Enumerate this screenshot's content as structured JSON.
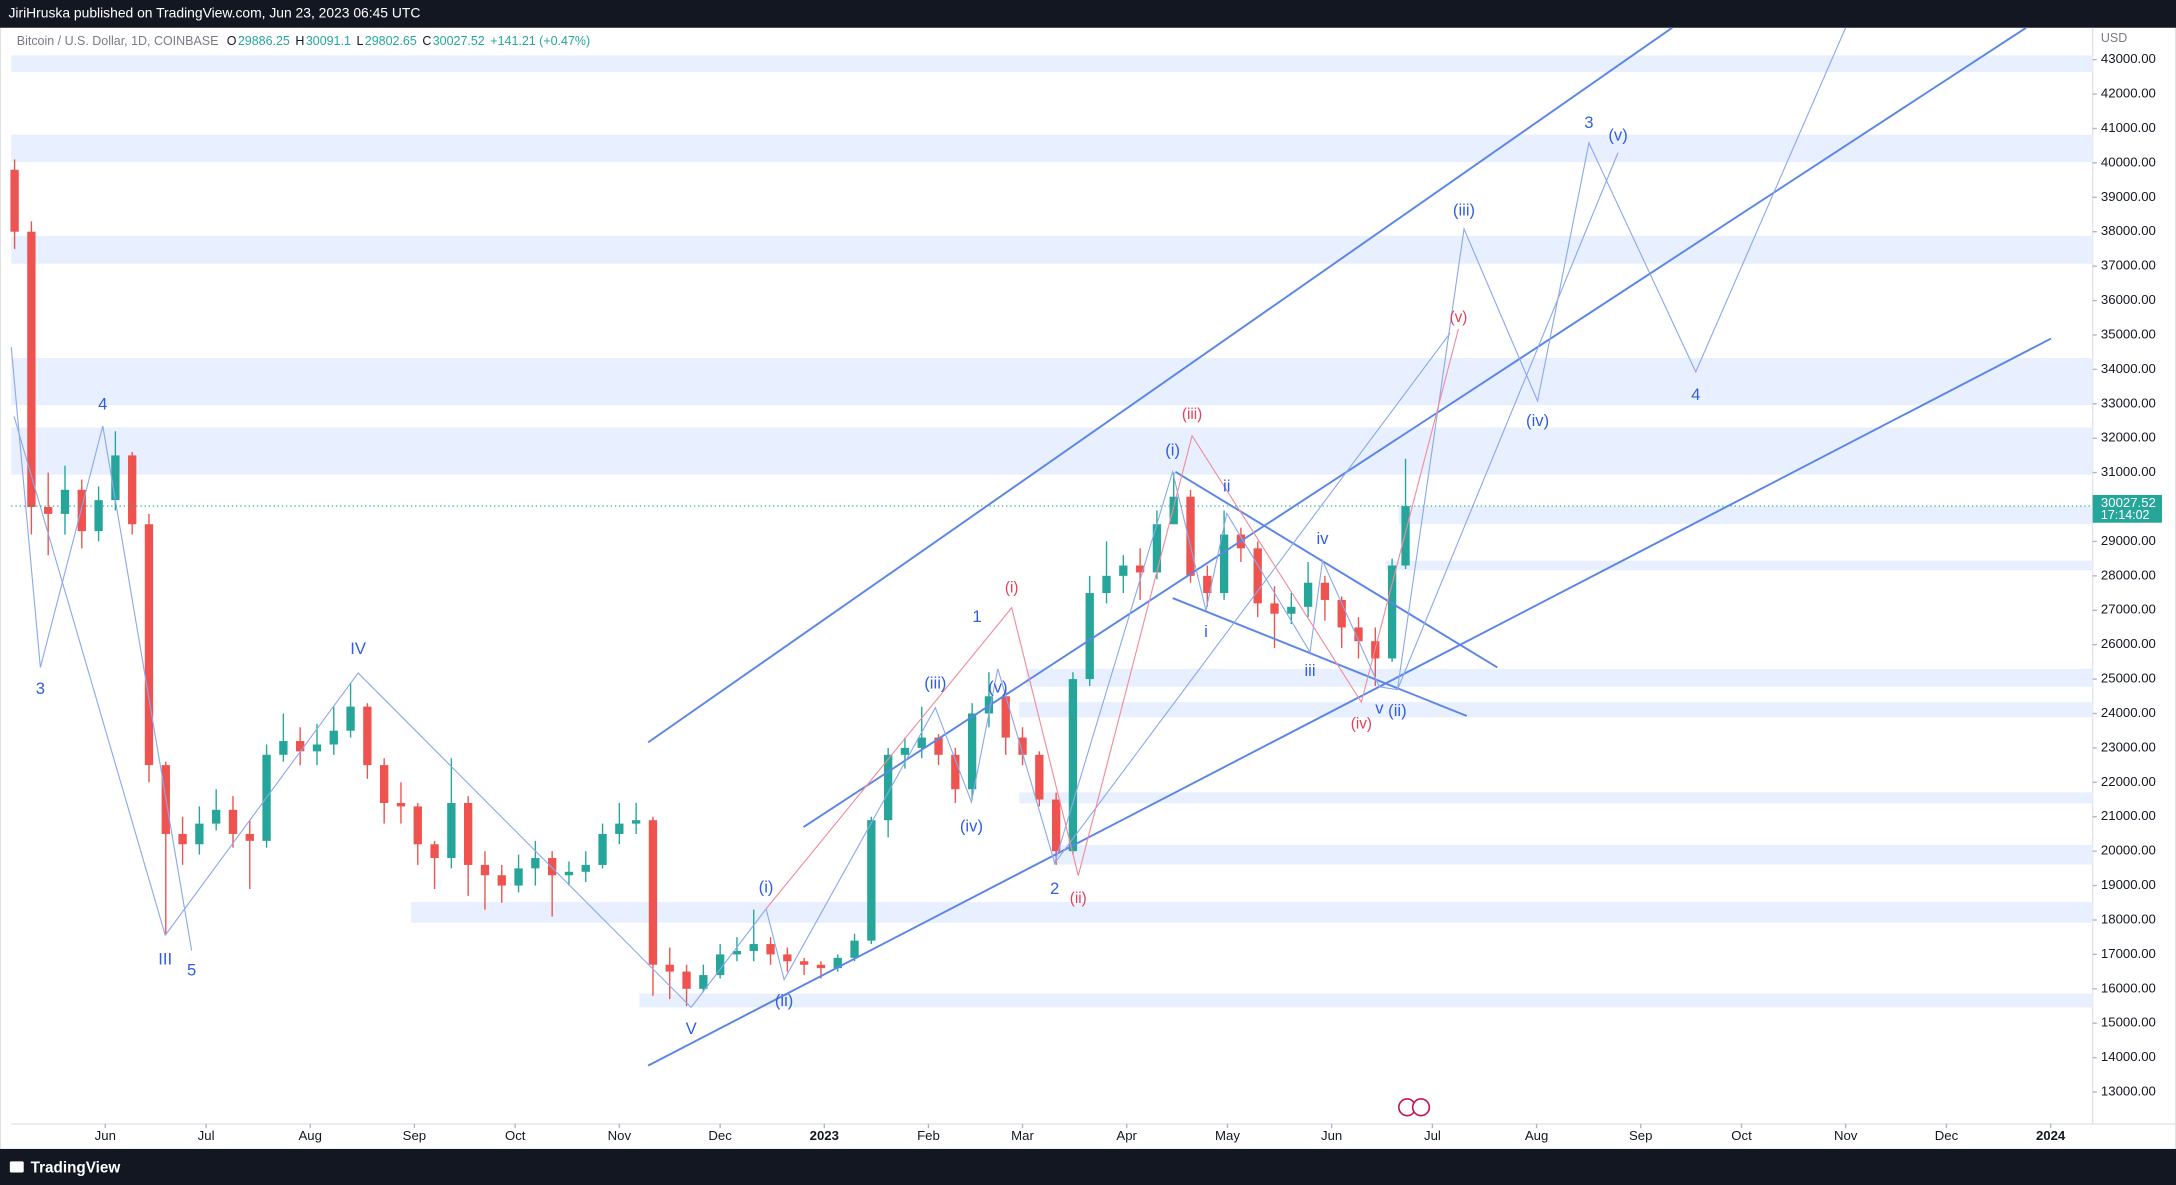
{
  "header": {
    "publisher": "JiriHruska published on TradingView.com, Jun 23, 2023 06:45 UTC"
  },
  "footer": {
    "brand": "TradingView"
  },
  "chart_data": {
    "type": "candlestick",
    "title": "Bitcoin / U.S. Dollar, 1D, COINBASE",
    "legend_ohlc": [
      {
        "label": "O",
        "value": 29886.25
      },
      {
        "label": "H",
        "value": 30091.1
      },
      {
        "label": "L",
        "value": 29802.65
      },
      {
        "label": "C",
        "value": 30027.52
      }
    ],
    "change": "+141.21 (+0.47%)",
    "y_unit": "USD",
    "countdown": "17:14:02",
    "up_color": "#26a69a",
    "down_color": "#ef5350",
    "zone_color": "#e8efff",
    "x": [
      1,
      6,
      11,
      16,
      21,
      26,
      31,
      36,
      41,
      46,
      51,
      56,
      61,
      66,
      71,
      76,
      81,
      86,
      91,
      96,
      101,
      106,
      111,
      116,
      121,
      126,
      131,
      136,
      141,
      146,
      151,
      156,
      161,
      166,
      171,
      176,
      181,
      186,
      191,
      196,
      201,
      206,
      211,
      216,
      221,
      226,
      231,
      236,
      241,
      246,
      251,
      256,
      261,
      266,
      271,
      276,
      281,
      286,
      291,
      296,
      301,
      306,
      311,
      316,
      321,
      326,
      331,
      336,
      341,
      346,
      351,
      356,
      361,
      366,
      371,
      376,
      381,
      386,
      391,
      396,
      401,
      406,
      411,
      415
    ],
    "open": [
      39800,
      38000,
      30000,
      29800,
      30500,
      29300,
      30200,
      31500,
      29500,
      22500,
      20500,
      20200,
      20800,
      21200,
      20500,
      20300,
      22800,
      23200,
      22900,
      23100,
      23500,
      24200,
      22500,
      21400,
      21300,
      20200,
      19800,
      21400,
      19600,
      19300,
      19000,
      19500,
      19800,
      19300,
      19400,
      19600,
      20500,
      20800,
      20900,
      16700,
      16500,
      16000,
      16400,
      17000,
      17100,
      17300,
      17000,
      16800,
      16700,
      16600,
      16900,
      17400,
      20900,
      22800,
      23000,
      23300,
      22800,
      21800,
      24000,
      24500,
      23300,
      22800,
      21500,
      20000,
      25000,
      27500,
      28000,
      28300,
      28100,
      29500,
      30300,
      28000,
      27500,
      29200,
      28800,
      27200,
      26900,
      27100,
      27800,
      27300,
      26500,
      26100,
      25600,
      28300
    ],
    "high": [
      40100,
      38300,
      31000,
      31200,
      30800,
      30600,
      32200,
      31600,
      29800,
      22600,
      21000,
      21300,
      21800,
      21600,
      20900,
      23100,
      24000,
      23600,
      23700,
      24200,
      24900,
      24300,
      22700,
      22000,
      21400,
      20300,
      22700,
      21600,
      20000,
      19600,
      19900,
      20300,
      20000,
      19700,
      20000,
      20800,
      21400,
      21400,
      21000,
      17200,
      16700,
      16700,
      17300,
      17500,
      18300,
      17500,
      17200,
      16900,
      16800,
      17000,
      17600,
      21000,
      23000,
      23300,
      24200,
      23400,
      23000,
      24300,
      25200,
      24700,
      23600,
      22900,
      21700,
      25200,
      28000,
      29000,
      28600,
      28800,
      29900,
      31000,
      30500,
      28300,
      29900,
      29400,
      29000,
      27700,
      27500,
      28400,
      28000,
      27400,
      26800,
      26500,
      28500,
      31400
    ],
    "low": [
      37500,
      29200,
      28600,
      29200,
      28800,
      29000,
      29900,
      29200,
      22000,
      17600,
      19600,
      19900,
      20600,
      20100,
      18900,
      20100,
      22600,
      22500,
      22500,
      22800,
      23300,
      22100,
      20800,
      20800,
      19600,
      18900,
      19500,
      18700,
      18300,
      18500,
      18800,
      19000,
      18100,
      19000,
      19100,
      19500,
      20200,
      20500,
      15800,
      15700,
      15500,
      15900,
      16300,
      16800,
      16800,
      16700,
      16500,
      16400,
      16300,
      16500,
      16800,
      17300,
      20400,
      22400,
      22700,
      22500,
      21400,
      21500,
      23600,
      22800,
      22500,
      21300,
      19600,
      19900,
      24800,
      27200,
      27500,
      27300,
      27900,
      29500,
      27800,
      27100,
      27300,
      28400,
      26800,
      25900,
      26600,
      26800,
      26700,
      25900,
      25600,
      24800,
      25500,
      28200
    ],
    "close": [
      38000,
      30000,
      29800,
      30500,
      29300,
      30200,
      31500,
      29500,
      22500,
      20500,
      20200,
      20800,
      21200,
      20500,
      20300,
      22800,
      23200,
      22900,
      23100,
      23500,
      24200,
      22500,
      21400,
      21300,
      20200,
      19800,
      21400,
      19600,
      19300,
      19000,
      19500,
      19800,
      19300,
      19400,
      19600,
      20500,
      20800,
      20900,
      16700,
      16500,
      16000,
      16400,
      17000,
      17100,
      17300,
      17000,
      16800,
      16700,
      16600,
      16900,
      17400,
      20900,
      22800,
      23000,
      23300,
      22800,
      21800,
      24000,
      24500,
      23300,
      22800,
      21500,
      20000,
      25000,
      27500,
      28000,
      28300,
      28100,
      29500,
      30300,
      28000,
      27500,
      29200,
      28800,
      27200,
      26900,
      27100,
      27800,
      27300,
      26500,
      26100,
      25600,
      28300,
      30027.52
    ],
    "xlim": [
      0,
      619.5
    ],
    "xticks": [
      {
        "value": 28,
        "label": "Jun"
      },
      {
        "value": 58,
        "label": "Jul"
      },
      {
        "value": 89,
        "label": "Aug"
      },
      {
        "value": 120,
        "label": "Sep"
      },
      {
        "value": 150,
        "label": "Oct"
      },
      {
        "value": 181,
        "label": "Nov"
      },
      {
        "value": 211,
        "label": "Dec"
      },
      {
        "value": 242,
        "label": "2023"
      },
      {
        "value": 273,
        "label": "Feb"
      },
      {
        "value": 301,
        "label": "Mar"
      },
      {
        "value": 332,
        "label": "Apr"
      },
      {
        "value": 362,
        "label": "May"
      },
      {
        "value": 393,
        "label": "Jun"
      },
      {
        "value": 423,
        "label": "Jul"
      },
      {
        "value": 454,
        "label": "Aug"
      },
      {
        "value": 485,
        "label": "Sep"
      },
      {
        "value": 515,
        "label": "Oct"
      },
      {
        "value": 546,
        "label": "Nov"
      },
      {
        "value": 576,
        "label": "Dec"
      },
      {
        "value": 607,
        "label": "2024"
      }
    ],
    "ylim": [
      12073,
      43927
    ],
    "yticks": [
      {
        "value": 13000,
        "label": "13000.00"
      },
      {
        "value": 14000,
        "label": "14000.00"
      },
      {
        "value": 15000,
        "label": "15000.00"
      },
      {
        "value": 16000,
        "label": "16000.00"
      },
      {
        "value": 17000,
        "label": "17000.00"
      },
      {
        "value": 18000,
        "label": "18000.00"
      },
      {
        "value": 19000,
        "label": "19000.00"
      },
      {
        "value": 20000,
        "label": "20000.00"
      },
      {
        "value": 21000,
        "label": "21000.00"
      },
      {
        "value": 22000,
        "label": "22000.00"
      },
      {
        "value": 23000,
        "label": "23000.00"
      },
      {
        "value": 24000,
        "label": "24000.00"
      },
      {
        "value": 25000,
        "label": "25000.00"
      },
      {
        "value": 26000,
        "label": "26000.00"
      },
      {
        "value": 27000,
        "label": "27000.00"
      },
      {
        "value": 28000,
        "label": "28000.00"
      },
      {
        "value": 29000,
        "label": "29000.00"
      },
      {
        "value": 30000,
        "label": "30000.00"
      },
      {
        "value": 31000,
        "label": "31000.00"
      },
      {
        "value": 32000,
        "label": "32000.00"
      },
      {
        "value": 33000,
        "label": "33000.00"
      },
      {
        "value": 34000,
        "label": "34000.00"
      },
      {
        "value": 35000,
        "label": "35000.00"
      },
      {
        "value": 36000,
        "label": "36000.00"
      },
      {
        "value": 37000,
        "label": "37000.00"
      },
      {
        "value": 38000,
        "label": "38000.00"
      },
      {
        "value": 39000,
        "label": "39000.00"
      },
      {
        "value": 40000,
        "label": "40000.00"
      },
      {
        "value": 41000,
        "label": "41000.00"
      },
      {
        "value": 42000,
        "label": "42000.00"
      },
      {
        "value": 43000,
        "label": "43000.00"
      }
    ],
    "zones": [
      {
        "from": 42640,
        "to": 43120,
        "start": 0
      },
      {
        "from": 40020,
        "to": 40820,
        "start": 0
      },
      {
        "from": 37070,
        "to": 37880,
        "start": 0
      },
      {
        "from": 32960,
        "to": 34330,
        "start": 0
      },
      {
        "from": 30940,
        "to": 32310,
        "start": 0
      },
      {
        "from": 29500,
        "to": 30020,
        "start": 413
      },
      {
        "from": 28160,
        "to": 28440,
        "start": 409
      },
      {
        "from": 24780,
        "to": 25300,
        "start": 302
      },
      {
        "from": 23890,
        "to": 24330,
        "start": 300
      },
      {
        "from": 21390,
        "to": 21710,
        "start": 300
      },
      {
        "from": 19610,
        "to": 20180,
        "start": 310
      },
      {
        "from": 17920,
        "to": 18520,
        "start": 119
      },
      {
        "from": 15460,
        "to": 15860,
        "start": 187
      }
    ],
    "annotations": [
      "3",
      "4",
      "III",
      "5",
      "IV",
      "V",
      "(i)",
      "(ii)",
      "(iii)",
      "(iv)",
      "(v)",
      "1",
      "2",
      "(i)",
      "i",
      "ii",
      "iii",
      "iv",
      "v",
      "(ii)",
      "(iii)",
      "(iv)",
      "3",
      "(v)",
      "4",
      "(i)",
      "(ii)",
      "(iii)",
      "(iv)",
      "(v)"
    ]
  }
}
